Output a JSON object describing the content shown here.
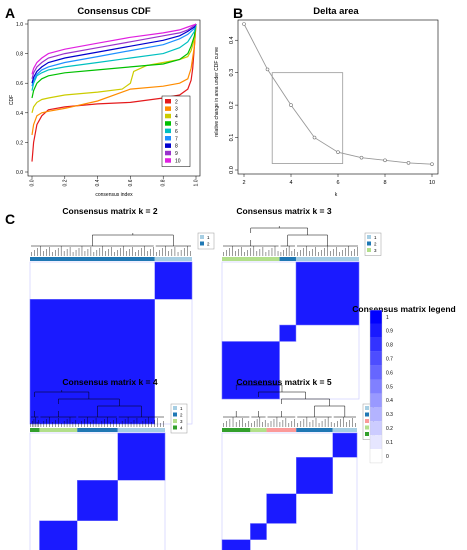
{
  "panels": {
    "a_letter": "A",
    "b_letter": "B",
    "c_letter": "C"
  },
  "chart_data": [
    {
      "type": "line",
      "title": "Consensus CDF",
      "xlabel": "consensus index",
      "ylabel": "CDF",
      "xlim": [
        0,
        1
      ],
      "ylim": [
        0,
        1
      ],
      "x_ticks": [
        "0.0",
        "0.2",
        "0.4",
        "0.6",
        "0.8",
        "1.0"
      ],
      "y_ticks": [
        "0.0",
        "0.2",
        "0.4",
        "0.6",
        "0.8",
        "1.0"
      ],
      "legend_position": "bottom-right",
      "series": [
        {
          "name": "2",
          "color": "#e41a1c",
          "x": [
            0,
            0.01,
            0.03,
            0.06,
            0.1,
            0.2,
            0.4,
            0.6,
            0.8,
            0.9,
            0.95,
            0.97,
            0.98,
            0.99,
            1.0
          ],
          "y": [
            0.07,
            0.2,
            0.32,
            0.38,
            0.42,
            0.44,
            0.46,
            0.47,
            0.5,
            0.52,
            0.56,
            0.62,
            0.7,
            0.85,
            1.0
          ]
        },
        {
          "name": "3",
          "color": "#ff8c00",
          "x": [
            0,
            0.01,
            0.03,
            0.06,
            0.1,
            0.2,
            0.4,
            0.6,
            0.8,
            0.9,
            0.95,
            0.97,
            0.99,
            1.0
          ],
          "y": [
            0.25,
            0.32,
            0.38,
            0.4,
            0.41,
            0.43,
            0.48,
            0.56,
            0.58,
            0.6,
            0.63,
            0.7,
            0.85,
            1.0
          ]
        },
        {
          "name": "4",
          "color": "#cccc00",
          "x": [
            0,
            0.01,
            0.03,
            0.06,
            0.1,
            0.2,
            0.4,
            0.55,
            0.6,
            0.62,
            0.7,
            0.8,
            0.9,
            0.95,
            0.97,
            0.99,
            1.0
          ],
          "y": [
            0.4,
            0.44,
            0.47,
            0.49,
            0.5,
            0.52,
            0.54,
            0.56,
            0.6,
            0.68,
            0.72,
            0.74,
            0.76,
            0.78,
            0.82,
            0.9,
            1.0
          ]
        },
        {
          "name": "5",
          "color": "#00c000",
          "x": [
            0,
            0.01,
            0.03,
            0.06,
            0.1,
            0.2,
            0.4,
            0.6,
            0.8,
            0.9,
            0.95,
            0.97,
            0.99,
            1.0
          ],
          "y": [
            0.5,
            0.55,
            0.6,
            0.63,
            0.65,
            0.67,
            0.69,
            0.71,
            0.73,
            0.76,
            0.8,
            0.85,
            0.92,
            1.0
          ]
        },
        {
          "name": "6",
          "color": "#00c0c0",
          "x": [
            0,
            0.01,
            0.03,
            0.06,
            0.1,
            0.2,
            0.4,
            0.6,
            0.8,
            0.9,
            0.95,
            0.99,
            1.0
          ],
          "y": [
            0.55,
            0.6,
            0.65,
            0.67,
            0.69,
            0.71,
            0.74,
            0.77,
            0.8,
            0.84,
            0.88,
            0.95,
            1.0
          ]
        },
        {
          "name": "7",
          "color": "#1e90ff",
          "x": [
            0,
            0.01,
            0.03,
            0.06,
            0.1,
            0.2,
            0.4,
            0.6,
            0.8,
            0.9,
            0.95,
            0.99,
            1.0
          ],
          "y": [
            0.58,
            0.62,
            0.66,
            0.69,
            0.71,
            0.74,
            0.78,
            0.82,
            0.86,
            0.9,
            0.93,
            0.97,
            1.0
          ]
        },
        {
          "name": "8",
          "color": "#0000cd",
          "x": [
            0,
            0.01,
            0.03,
            0.06,
            0.1,
            0.2,
            0.4,
            0.6,
            0.8,
            0.9,
            0.95,
            0.99,
            1.0
          ],
          "y": [
            0.6,
            0.64,
            0.68,
            0.71,
            0.74,
            0.77,
            0.81,
            0.85,
            0.89,
            0.92,
            0.95,
            0.98,
            1.0
          ]
        },
        {
          "name": "9",
          "color": "#9932cc",
          "x": [
            0,
            0.01,
            0.03,
            0.06,
            0.1,
            0.2,
            0.4,
            0.6,
            0.8,
            0.9,
            0.95,
            0.99,
            1.0
          ],
          "y": [
            0.63,
            0.67,
            0.71,
            0.74,
            0.77,
            0.8,
            0.84,
            0.88,
            0.92,
            0.94,
            0.96,
            0.99,
            1.0
          ]
        },
        {
          "name": "10",
          "color": "#e020e0",
          "x": [
            0,
            0.01,
            0.03,
            0.06,
            0.1,
            0.2,
            0.4,
            0.6,
            0.8,
            0.9,
            0.95,
            0.99,
            1.0
          ],
          "y": [
            0.66,
            0.7,
            0.74,
            0.77,
            0.8,
            0.83,
            0.87,
            0.91,
            0.94,
            0.96,
            0.98,
            0.995,
            1.0
          ]
        }
      ]
    },
    {
      "type": "line",
      "title": "Delta area",
      "xlabel": "k",
      "ylabel": "relative change in area under CDF curve",
      "xlim": [
        2,
        10
      ],
      "ylim": [
        0,
        0.45
      ],
      "x_ticks": [
        "2",
        "4",
        "6",
        "8",
        "10"
      ],
      "y_ticks": [
        "0.0",
        "0.1",
        "0.2",
        "0.3",
        "0.4"
      ],
      "color": "#999999",
      "x": [
        2,
        3,
        4,
        5,
        6,
        7,
        8,
        9,
        10
      ],
      "y": [
        0.45,
        0.31,
        0.2,
        0.1,
        0.055,
        0.038,
        0.03,
        0.022,
        0.018
      ],
      "annotation_box": {
        "x": [
          3.2,
          6.2
        ],
        "y": [
          0.02,
          0.3
        ]
      }
    },
    {
      "type": "heatmap",
      "title": "Consensus matrix k = 2",
      "legend": [
        "1",
        "2"
      ],
      "cluster_colors": [
        "#a6cee3",
        "#1f78b4"
      ],
      "cluster_fractions": [
        0.23,
        0.77
      ],
      "order": [
        1,
        0
      ]
    },
    {
      "type": "heatmap",
      "title": "Consensus matrix k = 3",
      "legend": [
        "1",
        "2",
        "3"
      ],
      "cluster_colors": [
        "#a6cee3",
        "#1f78b4",
        "#b2df8a"
      ],
      "cluster_fractions": [
        0.46,
        0.12,
        0.42
      ],
      "order": [
        2,
        1,
        0
      ]
    },
    {
      "type": "heatmap",
      "title": "Consensus matrix k = 4",
      "legend": [
        "1",
        "2",
        "3",
        "4"
      ],
      "cluster_colors": [
        "#a6cee3",
        "#1f78b4",
        "#b2df8a",
        "#33a02c"
      ],
      "cluster_fractions": [
        0.35,
        0.3,
        0.28,
        0.07
      ],
      "order": [
        3,
        2,
        1,
        0
      ]
    },
    {
      "type": "heatmap",
      "title": "Consensus matrix k = 5",
      "legend": [
        "1",
        "2",
        "3",
        "4",
        "5"
      ],
      "cluster_colors": [
        "#a6cee3",
        "#1f78b4",
        "#fb9a99",
        "#b2df8a",
        "#33a02c"
      ],
      "cluster_fractions": [
        0.18,
        0.27,
        0.22,
        0.12,
        0.21
      ],
      "order": [
        4,
        3,
        2,
        1,
        0
      ]
    },
    {
      "type": "colorbar",
      "title": "Consensus matrix legend",
      "ticks": [
        "1",
        "0.9",
        "0.8",
        "0.7",
        "0.6",
        "0.5",
        "0.4",
        "0.3",
        "0.2",
        "0.1",
        "0"
      ],
      "color_high": "#0000ff",
      "color_low": "#ffffff"
    }
  ]
}
